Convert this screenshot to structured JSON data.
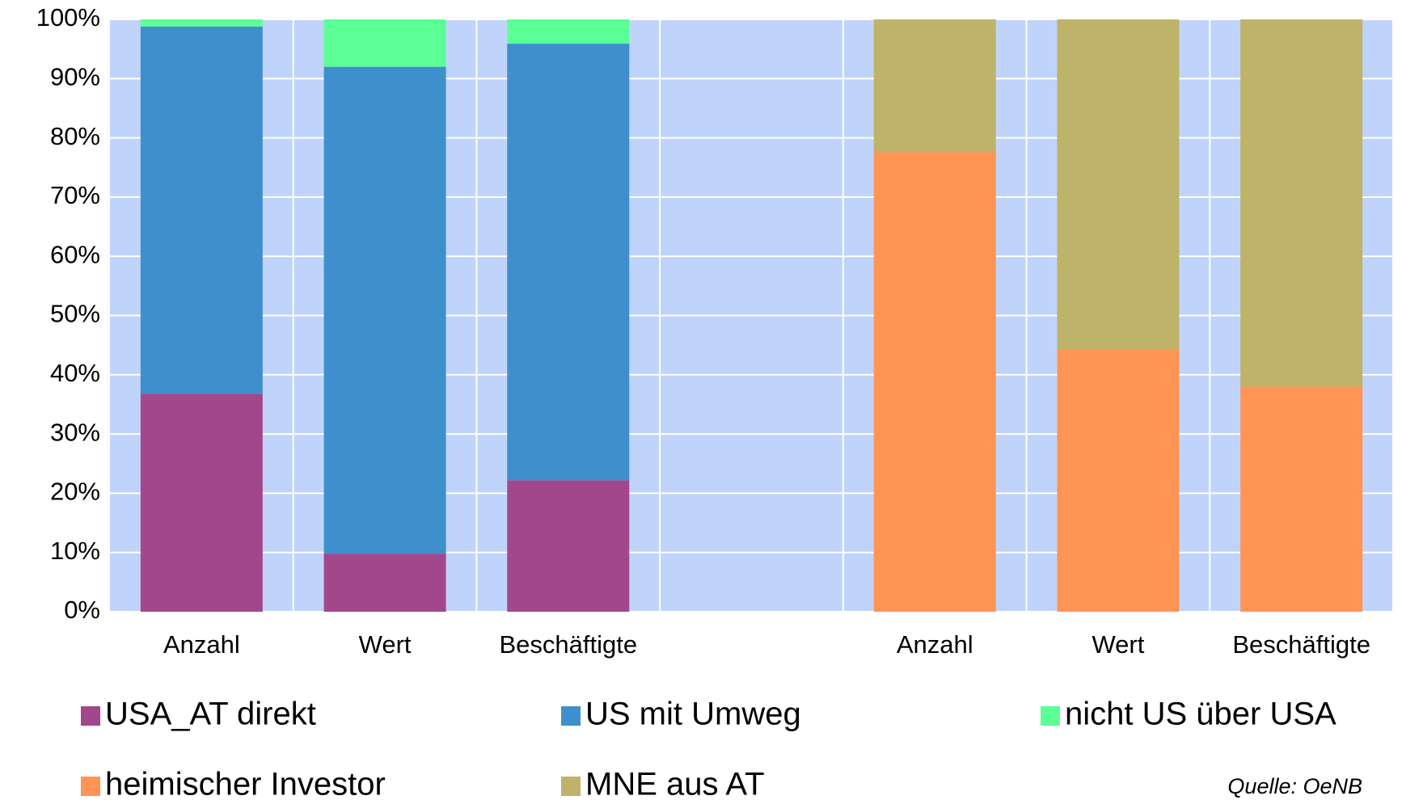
{
  "chart_data": {
    "type": "stacked_bar",
    "categories": [
      "Anzahl",
      "Wert",
      "Beschäftigte",
      null,
      "Anzahl",
      "Wert",
      "Beschäftigte"
    ],
    "series": [
      {
        "name": "USA_AT direkt",
        "color": "#a2478b",
        "values": [
          36.8,
          9.8,
          22.2,
          null,
          null,
          null,
          null
        ]
      },
      {
        "name": "US mit Umweg",
        "color": "#3f8fcc",
        "values": [
          62.0,
          82.2,
          73.7,
          null,
          null,
          null,
          null
        ]
      },
      {
        "name": "nicht US über USA",
        "color": "#5cff96",
        "values": [
          1.2,
          8.0,
          4.1,
          null,
          null,
          null,
          null
        ]
      },
      {
        "name": "heimischer Investor",
        "color": "#ff9454",
        "values": [
          null,
          null,
          null,
          null,
          77.6,
          44.3,
          38.0
        ]
      },
      {
        "name": "MNE aus AT",
        "color": "#bfb369",
        "values": [
          null,
          null,
          null,
          null,
          22.4,
          55.7,
          62.0
        ]
      }
    ],
    "ylim": [
      0,
      100
    ],
    "yticks": [
      {
        "value": 0,
        "label": "0%"
      },
      {
        "value": 10,
        "label": "10%"
      },
      {
        "value": 20,
        "label": "20%"
      },
      {
        "value": 30,
        "label": "30%"
      },
      {
        "value": 40,
        "label": "40%"
      },
      {
        "value": 50,
        "label": "50%"
      },
      {
        "value": 60,
        "label": "60%"
      },
      {
        "value": 70,
        "label": "70%"
      },
      {
        "value": 80,
        "label": "80%"
      },
      {
        "value": 90,
        "label": "90%"
      },
      {
        "value": 100,
        "label": "100%"
      }
    ],
    "grid": true,
    "plot_background": "#c0d3fa",
    "annotation": "Quelle: OeNB"
  }
}
